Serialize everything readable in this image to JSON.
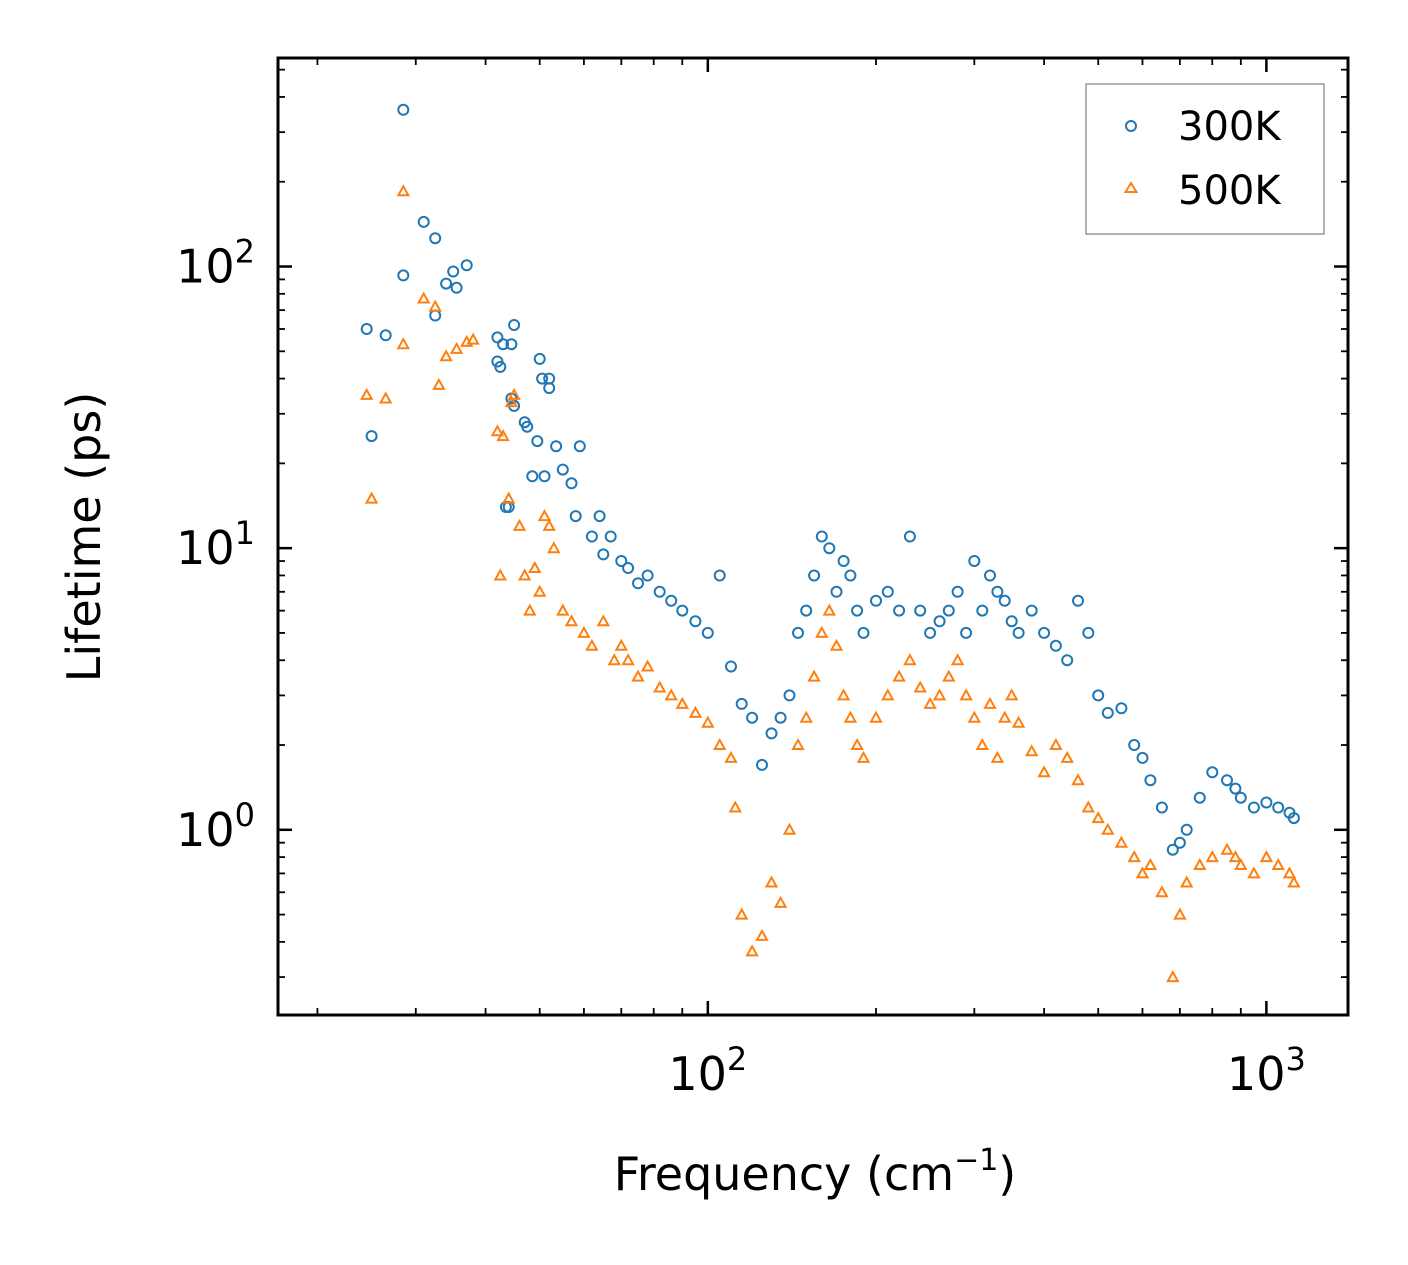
{
  "chart_data": {
    "type": "scatter",
    "title": "",
    "xlabel": "Frequency (cm",
    "xlabel_sup": "−1",
    "xlabel_end": ")",
    "ylabel": "Lifetime (ps)",
    "xscale": "log",
    "yscale": "log",
    "xlim": [
      17,
      1400
    ],
    "ylim": [
      0.22,
      550
    ],
    "x_major_ticks": [
      {
        "value": 100,
        "base": "10",
        "exp": "2"
      },
      {
        "value": 1000,
        "base": "10",
        "exp": "3"
      }
    ],
    "y_major_ticks": [
      {
        "value": 1,
        "base": "10",
        "exp": "0"
      },
      {
        "value": 10,
        "base": "10",
        "exp": "1"
      },
      {
        "value": 100,
        "base": "10",
        "exp": "2"
      }
    ],
    "legend_position": "top-right",
    "series": [
      {
        "name": "300K",
        "marker": "circle",
        "color": "#1f77b4",
        "x": [
          28.5,
          28.5,
          24.5,
          25,
          26.5,
          31,
          32.5,
          32.5,
          34,
          35,
          35.5,
          37,
          42,
          42,
          42.5,
          43,
          43.5,
          44,
          45,
          44.5,
          45,
          44.5,
          47,
          47.5,
          48.5,
          50,
          49.5,
          51,
          50.5,
          52,
          52,
          53.5,
          55,
          57,
          58,
          59,
          62,
          64,
          65,
          67,
          70,
          72,
          75,
          78,
          82,
          86,
          90,
          95,
          100,
          105,
          110,
          115,
          120,
          125,
          130,
          135,
          140,
          145,
          150,
          155,
          160,
          165,
          170,
          175,
          180,
          185,
          190,
          200,
          210,
          220,
          230,
          240,
          250,
          260,
          270,
          280,
          290,
          300,
          310,
          320,
          330,
          340,
          350,
          360,
          380,
          400,
          420,
          440,
          460,
          480,
          500,
          520,
          550,
          580,
          600,
          620,
          650,
          680,
          700,
          720,
          760,
          800,
          850,
          880,
          900,
          950,
          1000,
          1050,
          1100,
          1120
        ],
        "y": [
          360,
          93,
          60,
          25,
          57,
          144,
          126,
          67,
          87,
          96,
          84,
          101,
          56,
          46,
          44,
          53,
          14,
          14,
          62,
          53,
          32,
          34,
          28,
          27,
          18,
          47,
          24,
          18,
          40,
          37,
          40,
          23,
          19,
          17,
          13,
          23,
          11,
          13,
          9.5,
          11,
          9,
          8.5,
          7.5,
          8,
          7,
          6.5,
          6,
          5.5,
          5,
          8,
          3.8,
          2.8,
          2.5,
          1.7,
          2.2,
          2.5,
          3,
          5,
          6,
          8,
          11,
          10,
          7,
          9,
          8,
          6,
          5,
          6.5,
          7,
          6,
          11,
          6,
          5,
          5.5,
          6,
          7,
          5,
          9,
          6,
          8,
          7,
          6.5,
          5.5,
          5,
          6,
          5,
          4.5,
          4,
          6.5,
          5,
          3,
          2.6,
          2.7,
          2,
          1.8,
          1.5,
          1.2,
          0.85,
          0.9,
          1.0,
          1.3,
          1.6,
          1.5,
          1.4,
          1.3,
          1.2,
          1.25,
          1.2,
          1.15,
          1.1
        ]
      },
      {
        "name": "500K",
        "marker": "triangle",
        "color": "#ff7f0e",
        "x": [
          28.5,
          28.5,
          24.5,
          25,
          26.5,
          31,
          32.5,
          33,
          34,
          35.5,
          37,
          38,
          42,
          42.5,
          43,
          44,
          44.5,
          45,
          46,
          47,
          48,
          49,
          50,
          51,
          52,
          53,
          55,
          57,
          60,
          62,
          65,
          68,
          70,
          72,
          75,
          78,
          82,
          86,
          90,
          95,
          100,
          105,
          110,
          112,
          115,
          120,
          125,
          130,
          135,
          140,
          145,
          150,
          155,
          160,
          165,
          170,
          175,
          180,
          185,
          190,
          200,
          210,
          220,
          230,
          240,
          250,
          260,
          270,
          280,
          290,
          300,
          310,
          320,
          330,
          340,
          350,
          360,
          380,
          400,
          420,
          440,
          460,
          480,
          500,
          520,
          550,
          580,
          600,
          620,
          650,
          680,
          700,
          720,
          760,
          800,
          850,
          880,
          900,
          950,
          1000,
          1050,
          1100,
          1120
        ],
        "y": [
          185,
          53,
          35,
          15,
          34,
          77,
          72,
          38,
          48,
          51,
          54,
          55,
          26,
          8,
          25,
          15,
          33,
          35,
          12,
          8,
          6,
          8.5,
          7,
          13,
          12,
          10,
          6,
          5.5,
          5,
          4.5,
          5.5,
          4,
          4.5,
          4,
          3.5,
          3.8,
          3.2,
          3,
          2.8,
          2.6,
          2.4,
          2.0,
          1.8,
          1.2,
          0.5,
          0.37,
          0.42,
          0.65,
          0.55,
          1.0,
          2.0,
          2.5,
          3.5,
          5.0,
          6.0,
          4.5,
          3.0,
          2.5,
          2.0,
          1.8,
          2.5,
          3.0,
          3.5,
          4.0,
          3.2,
          2.8,
          3.0,
          3.5,
          4.0,
          3.0,
          2.5,
          2.0,
          2.8,
          1.8,
          2.5,
          3.0,
          2.4,
          1.9,
          1.6,
          2.0,
          1.8,
          1.5,
          1.2,
          1.1,
          1.0,
          0.9,
          0.8,
          0.7,
          0.75,
          0.6,
          0.3,
          0.5,
          0.65,
          0.75,
          0.8,
          0.85,
          0.8,
          0.75,
          0.7,
          0.8,
          0.75,
          0.7,
          0.65
        ]
      }
    ]
  }
}
